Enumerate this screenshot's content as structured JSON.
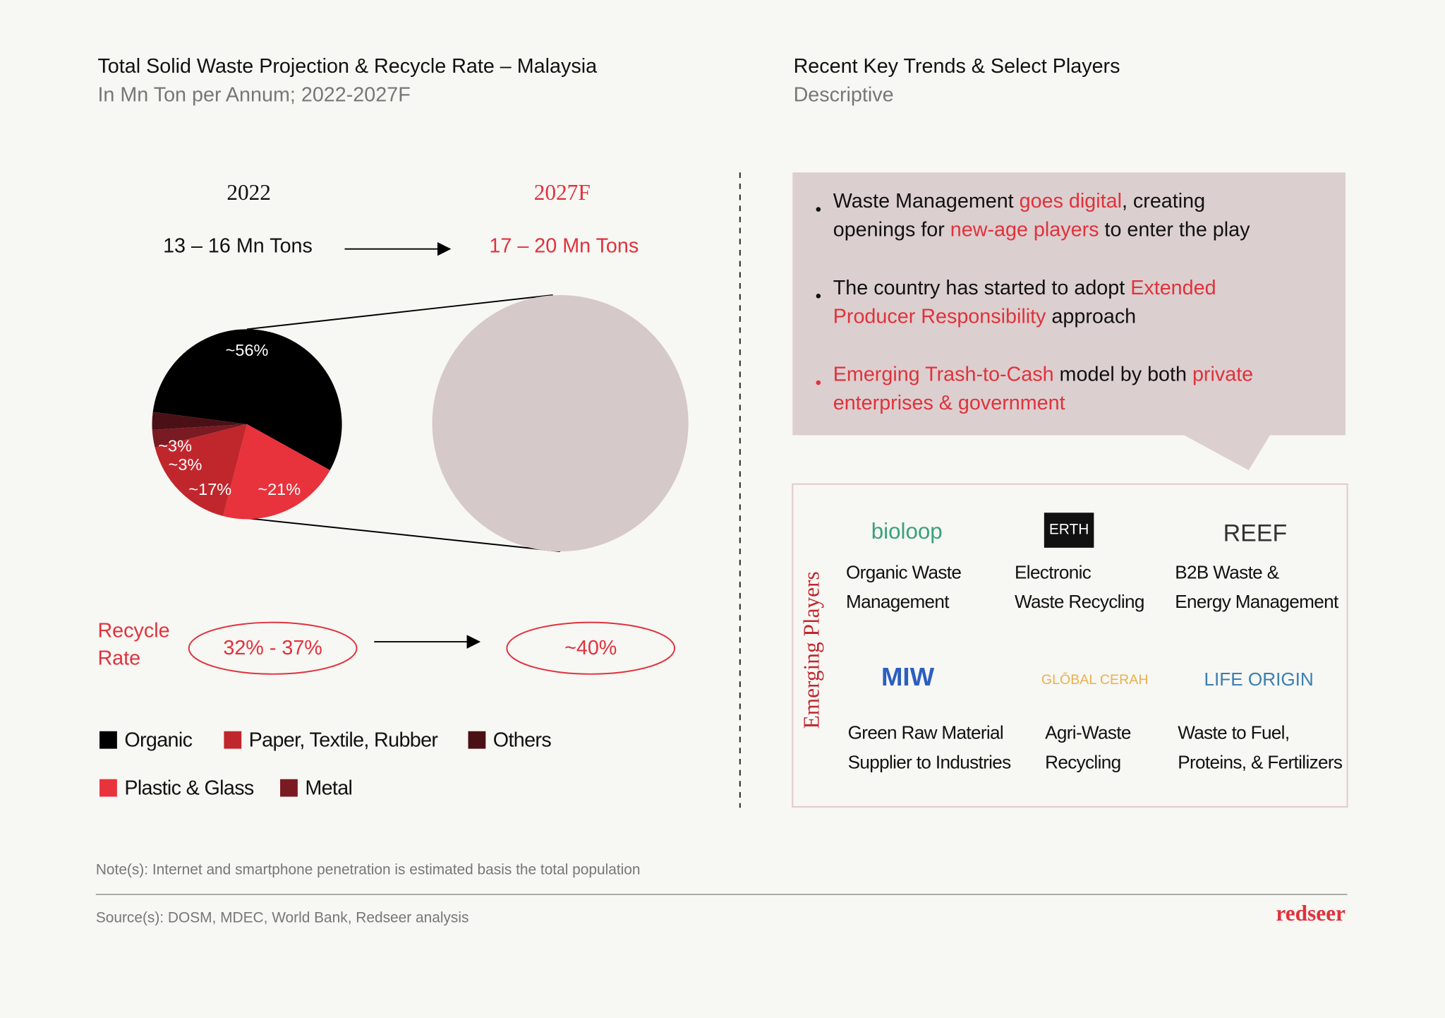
{
  "chart_data": {
    "type": "pie",
    "title": "Total Solid Waste Projection & Recycle Rate – Malaysia",
    "subtitle": "In Mn Ton per Annum; 2022-2027F",
    "categories": [
      "Organic",
      "Plastic & Glass",
      "Paper, Textile, Rubber",
      "Metal",
      "Others"
    ],
    "values": [
      56,
      21,
      17,
      3,
      3
    ],
    "value_labels": [
      "~56%",
      "~21%",
      "~17%",
      "~3%",
      "~3%"
    ],
    "colors": [
      "#000000",
      "#e8323c",
      "#c0272d",
      "#7a1a22",
      "#4a1016"
    ]
  },
  "left": {
    "year_a": "2022",
    "year_b": "2027F",
    "total_a": "13 – 16 Mn Tons",
    "total_b": "17 – 20 Mn Tons",
    "recycle_label": [
      "Recycle",
      "Rate"
    ],
    "recycle_a": "32% - 37%",
    "recycle_b": "~40%"
  },
  "right": {
    "title": "Recent Key Trends & Select Players",
    "subtitle": "Descriptive",
    "bullets": [
      [
        [
          {
            "text": "Waste Management ",
            "highlight": false
          },
          {
            "text": "goes digital",
            "highlight": true
          },
          {
            "text": ", creating",
            "highlight": false
          }
        ],
        [
          {
            "text": "openings for ",
            "highlight": false
          },
          {
            "text": "new-age players",
            "highlight": true
          },
          {
            "text": " to enter the play",
            "highlight": false
          }
        ]
      ],
      [
        [
          {
            "text": "The country has started to adopt ",
            "highlight": false
          },
          {
            "text": "Extended",
            "highlight": true
          }
        ],
        [
          {
            "text": "Producer Responsibility",
            "highlight": true
          },
          {
            "text": " approach",
            "highlight": false
          }
        ]
      ],
      [
        [
          {
            "text": "Emerging Trash-to-Cash",
            "highlight": true
          },
          {
            "text": " model by both ",
            "highlight": false
          },
          {
            "text": "private",
            "highlight": true
          }
        ],
        [
          {
            "text": "enterprises & government",
            "highlight": true
          }
        ]
      ]
    ],
    "players_label": "Emerging Players",
    "players": [
      {
        "logo": "bioloop",
        "desc": [
          "Organic Waste",
          "Management"
        ]
      },
      {
        "logo": "ERTH",
        "desc": [
          "Electronic",
          "Waste Recycling"
        ]
      },
      {
        "logo": "REEF",
        "desc": [
          "B2B Waste &",
          "Energy Management"
        ]
      },
      {
        "logo": "MIW",
        "desc": [
          "Green Raw Material",
          "Supplier to Industries"
        ]
      },
      {
        "logo": "GLŌBAL CERAH",
        "desc": [
          "Agri-Waste",
          "Recycling"
        ]
      },
      {
        "logo": "LIFE ORIGIN",
        "desc": [
          "Waste to Fuel,",
          "Proteins, & Fertilizers"
        ]
      }
    ]
  },
  "footer": {
    "note": "Note(s): Internet and smartphone penetration is estimated basis the total population",
    "source": "Source(s): DOSM, MDEC, World Bank, Redseer analysis",
    "brand": "redseer"
  }
}
